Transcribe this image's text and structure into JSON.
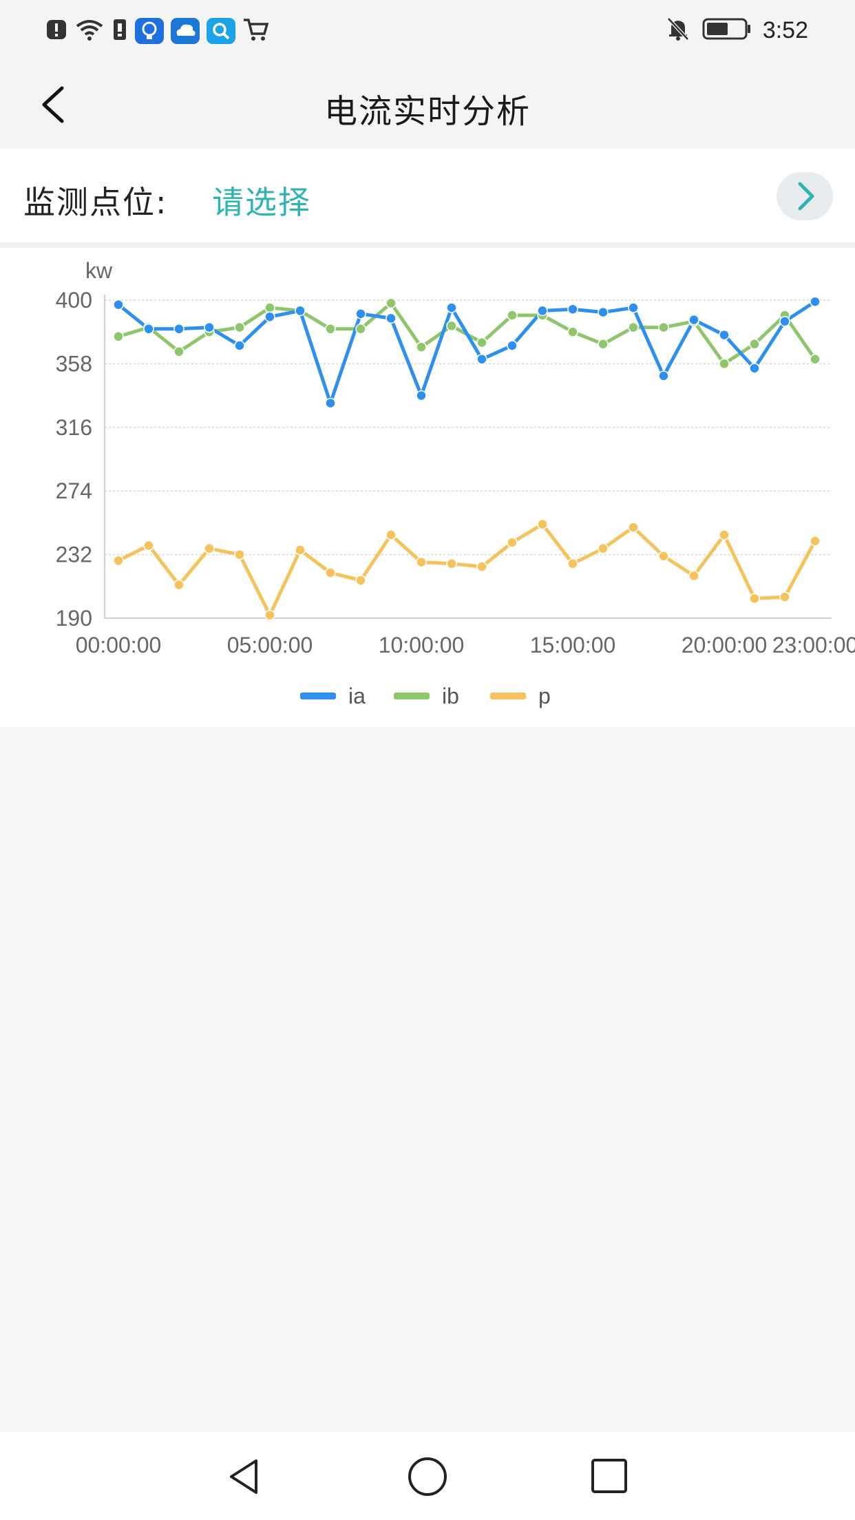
{
  "status_bar": {
    "time": "3:52",
    "left_icons": [
      "alert-icon",
      "wifi-icon",
      "sim-icon",
      "bulb-app-icon",
      "cloud-app-icon",
      "search-app-icon",
      "cart-icon"
    ],
    "right_icons": [
      "mute-bell-icon",
      "battery-icon"
    ]
  },
  "header": {
    "title": "电流实时分析",
    "back_icon": "chevron-left-icon"
  },
  "selector": {
    "label": "监测点位:",
    "value": "请选择",
    "arrow_icon": "chevron-right-icon"
  },
  "chart_data": {
    "type": "line",
    "ylabel": "kw",
    "ylim": [
      190,
      400
    ],
    "yticks": [
      "400",
      "358",
      "316",
      "274",
      "232",
      "190"
    ],
    "xtick_labels": [
      "00:00:00",
      "05:00:00",
      "10:00:00",
      "15:00:00",
      "20:00:00",
      "23:00:00"
    ],
    "xtick_index": [
      0,
      5,
      10,
      15,
      20,
      23
    ],
    "grid": true,
    "legend_position": "bottom",
    "categories": [
      "00:00:00",
      "01:00:00",
      "02:00:00",
      "03:00:00",
      "04:00:00",
      "05:00:00",
      "06:00:00",
      "07:00:00",
      "08:00:00",
      "09:00:00",
      "10:00:00",
      "11:00:00",
      "12:00:00",
      "13:00:00",
      "14:00:00",
      "15:00:00",
      "16:00:00",
      "17:00:00",
      "18:00:00",
      "19:00:00",
      "20:00:00",
      "21:00:00",
      "22:00:00",
      "23:00:00"
    ],
    "series": [
      {
        "name": "ia",
        "color": "#2d8ff0",
        "values": [
          397,
          381,
          381,
          382,
          370,
          389,
          393,
          332,
          391,
          388,
          337,
          395,
          361,
          370,
          393,
          394,
          392,
          395,
          350,
          387,
          377,
          355,
          386,
          399
        ]
      },
      {
        "name": "ib",
        "color": "#8dc66b",
        "values": [
          376,
          382,
          366,
          379,
          382,
          395,
          393,
          381,
          381,
          398,
          369,
          383,
          372,
          390,
          390,
          379,
          371,
          382,
          382,
          386,
          358,
          371,
          390,
          361
        ]
      },
      {
        "name": "p",
        "color": "#f6c25c",
        "values": [
          228,
          238,
          212,
          236,
          232,
          192,
          235,
          220,
          215,
          245,
          227,
          226,
          224,
          240,
          252,
          226,
          236,
          250,
          231,
          218,
          245,
          203,
          204,
          241
        ]
      }
    ]
  },
  "bottom_nav": {
    "buttons": [
      "back-triangle-icon",
      "home-circle-icon",
      "recents-square-icon"
    ]
  }
}
